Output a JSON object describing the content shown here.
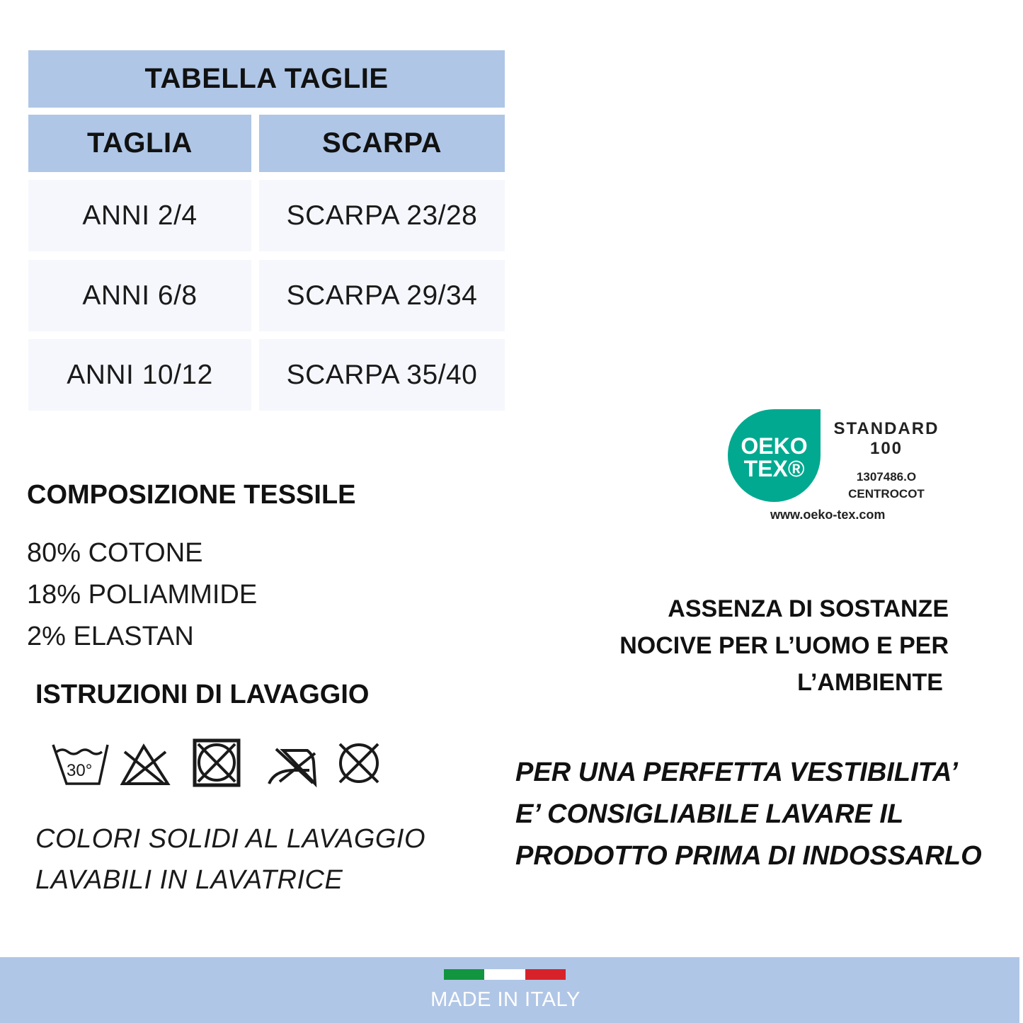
{
  "size_table": {
    "title": "TABELLA TAGLIE",
    "headers": [
      "TAGLIA",
      "SCARPA"
    ],
    "rows": [
      [
        "ANNI 2/4",
        "SCARPA 23/28"
      ],
      [
        "ANNI 6/8",
        "SCARPA 29/34"
      ],
      [
        "ANNI 10/12",
        "SCARPA 35/40"
      ]
    ]
  },
  "composition": {
    "title": "COMPOSIZIONE TESSILE",
    "items": [
      "80% COTONE",
      "18% POLIAMMIDE",
      "2% ELASTAN"
    ]
  },
  "washing": {
    "title": "ISTRUZIONI DI LAVAGGIO",
    "icons": [
      "wash-30-icon",
      "no-bleach-icon",
      "no-tumble-dry-icon",
      "no-iron-icon",
      "no-dry-clean-icon"
    ],
    "wash_temp": "30°",
    "notes": [
      "COLORI SOLIDI AL LAVAGGIO",
      "LAVABILI IN LAVATRICE"
    ]
  },
  "oekotex": {
    "logo_line1": "OEKO",
    "logo_line2": "TEX®",
    "standard": "STANDARD",
    "number": "100",
    "cert_id": "1307486.O",
    "institute": "CENTROCOT",
    "url": "www.oeko-tex.com",
    "color": "#00a98f"
  },
  "claim": [
    "ASSENZA DI SOSTANZE",
    "NOCIVE PER L’UOMO E PER",
    "L’AMBIENTE"
  ],
  "tip": [
    "PER UNA PERFETTA VESTIBILITA’",
    "E’ CONSIGLIABILE LAVARE IL",
    "PRODOTTO PRIMA DI INDOSSARLO"
  ],
  "footer": {
    "label": "MADE IN ITALY",
    "flag_colors": [
      "#12953f",
      "#ffffff",
      "#d8222a"
    ],
    "bg": "#b0c6e6"
  }
}
